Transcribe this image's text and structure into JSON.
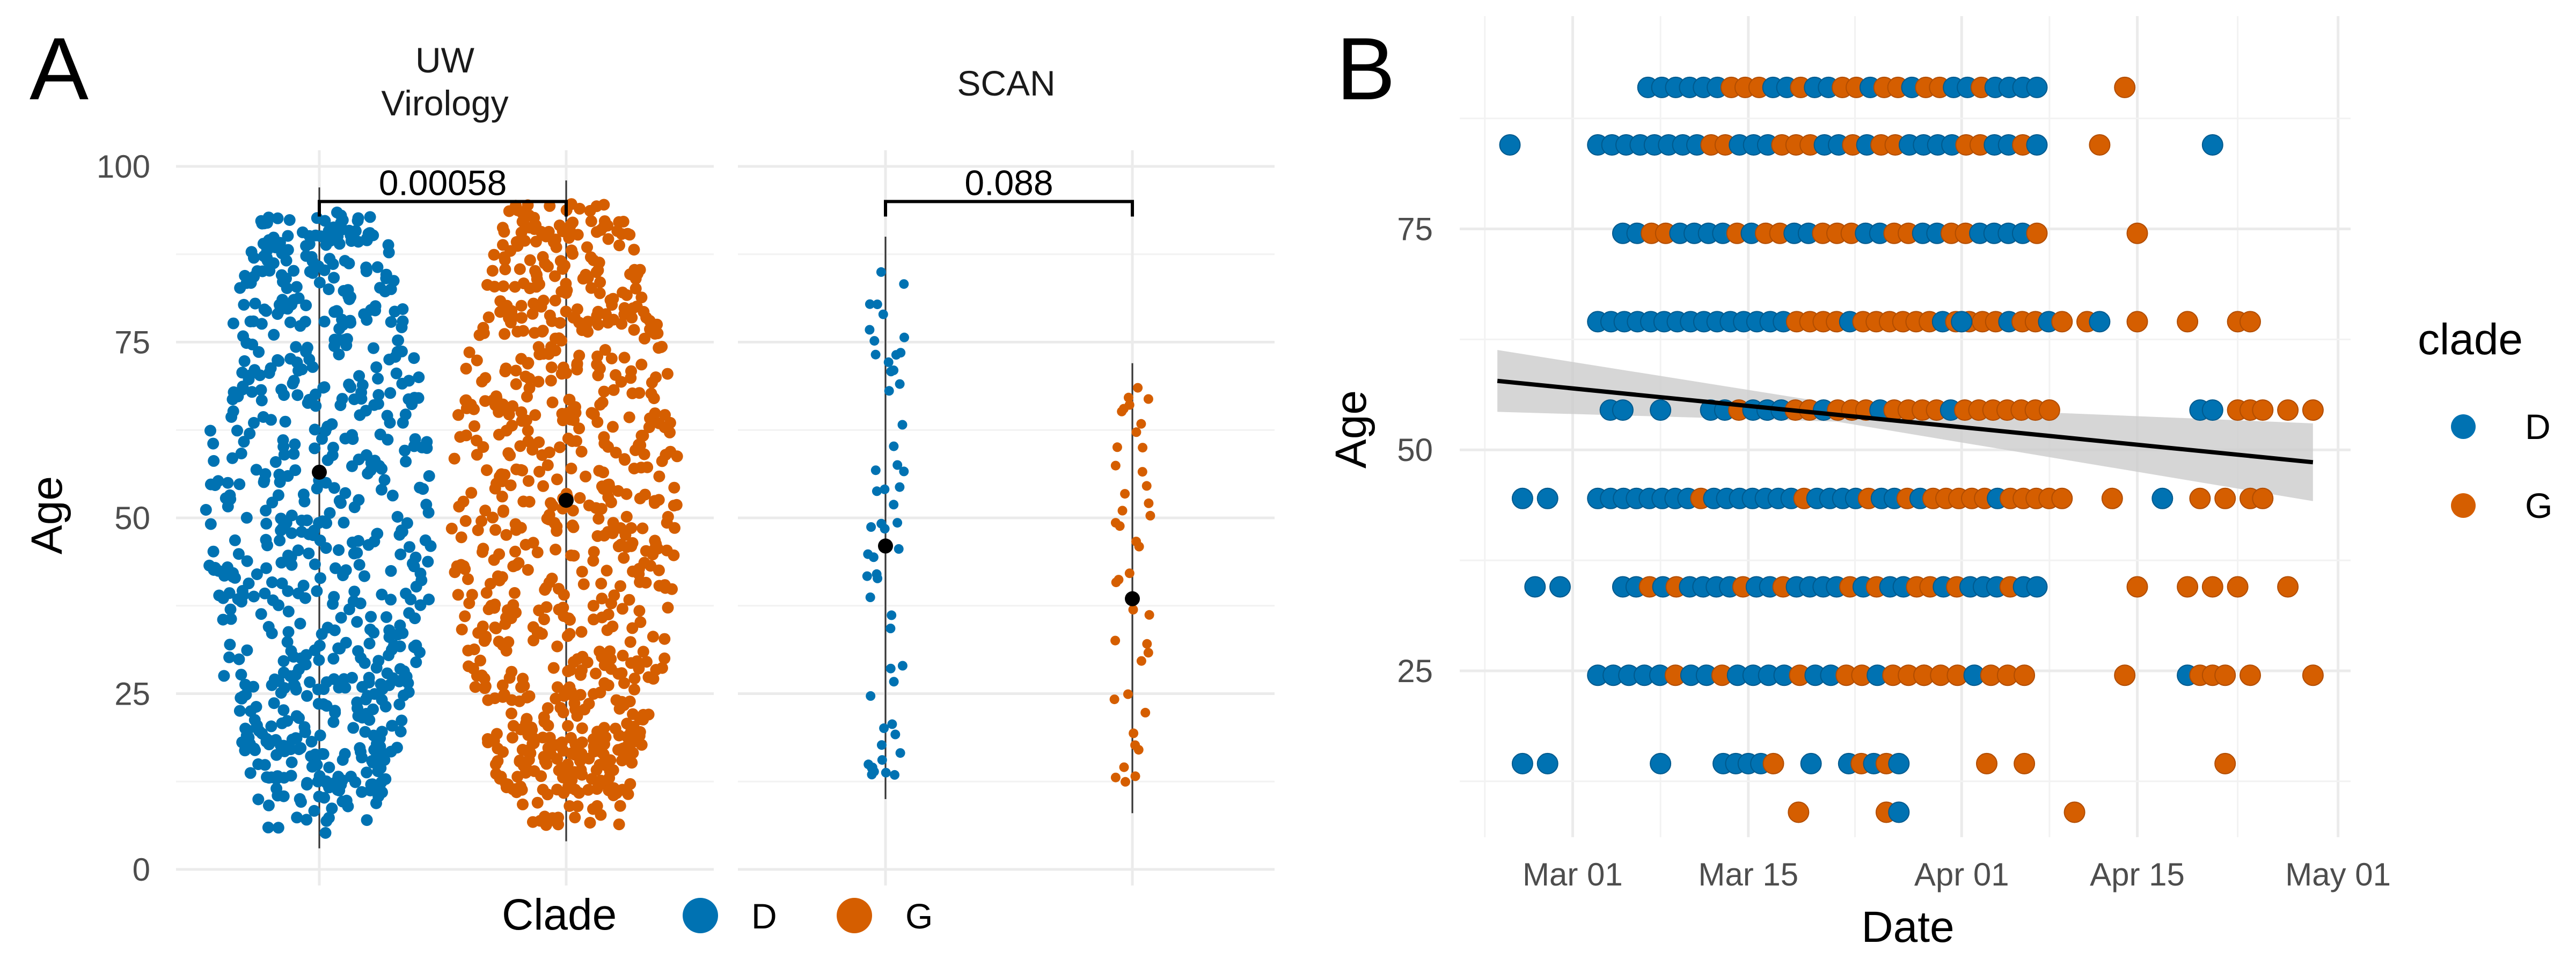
{
  "panels": {
    "a": "A",
    "b": "B"
  },
  "chart_data": [
    {
      "type": "scatter",
      "panel": "A",
      "description_type": "jittered strip plot with medians and significance brackets",
      "facets": [
        "UW\nVirology",
        "SCAN"
      ],
      "categories": [
        "D",
        "G"
      ],
      "ylabel": "Age",
      "xlabel": "",
      "ylim": [
        0,
        100
      ],
      "yticks": [
        0,
        25,
        50,
        75,
        100
      ],
      "grid": true,
      "legend": {
        "title": "Clade",
        "position": "bottom",
        "entries": [
          "D",
          "G"
        ]
      },
      "colors": {
        "D": "#0072B2",
        "G": "#D55E00",
        "median": "#000000"
      },
      "groups": [
        {
          "facet": "UW\nVirology",
          "clade": "D",
          "median": 56.5,
          "n_approx": 700,
          "range": [
            5,
            94
          ]
        },
        {
          "facet": "UW\nVirology",
          "clade": "G",
          "median": 52.5,
          "n_approx": 800,
          "range": [
            6,
            95
          ]
        },
        {
          "facet": "SCAN",
          "clade": "D",
          "median": 46,
          "n_approx": 55,
          "range": [
            12,
            87
          ]
        },
        {
          "facet": "SCAN",
          "clade": "G",
          "median": 38.5,
          "n_approx": 40,
          "range": [
            10,
            69
          ]
        }
      ],
      "comparisons": [
        {
          "facet": "UW\nVirology",
          "label": "0.00058"
        },
        {
          "facet": "SCAN",
          "label": "0.088"
        }
      ]
    },
    {
      "type": "scatter",
      "panel": "B",
      "xlabel": "Date",
      "ylabel": "Age",
      "xlim": [
        "2020-02-21",
        "2020-05-02"
      ],
      "ylim": [
        8,
        93
      ],
      "xticks": [
        {
          "date": "2020-03-01",
          "label": "Mar 01"
        },
        {
          "date": "2020-03-15",
          "label": "Mar 15"
        },
        {
          "date": "2020-04-01",
          "label": "Apr 01"
        },
        {
          "date": "2020-04-15",
          "label": "Apr 15"
        },
        {
          "date": "2020-05-01",
          "label": "May 01"
        }
      ],
      "yticks": [
        25,
        50,
        75
      ],
      "grid": true,
      "legend": {
        "title": "clade",
        "position": "right",
        "entries": [
          "D",
          "G"
        ]
      },
      "colors": {
        "D": "#0072B2",
        "G": "#D55E00",
        "ribbon": "#cccccc",
        "line": "#000000"
      },
      "age_bins": [
        14.5,
        24.5,
        34.5,
        44.5,
        54.5,
        64.5,
        74.5,
        84.5,
        91
      ],
      "trend": {
        "start": [
          "2020-02-24",
          57.8
        ],
        "end": [
          "2020-04-29",
          48.6
        ],
        "ci_start": [
          54.3,
          61.3
        ],
        "ci_end": [
          44.2,
          53
        ]
      },
      "points": [
        {
          "date": "2020-02-25",
          "age": 84.5,
          "clade": "D"
        },
        {
          "date": "2020-02-26",
          "age": 14.5,
          "clade": "D"
        },
        {
          "date": "2020-02-28",
          "age": 14.5,
          "clade": "D"
        },
        {
          "date": "2020-03-08",
          "age": 14.5,
          "clade": "D"
        },
        {
          "date": "2020-03-13",
          "age": 14.5,
          "clade": "D"
        },
        {
          "date": "2020-03-14",
          "age": 14.5,
          "clade": "D"
        },
        {
          "date": "2020-03-15",
          "age": 14.5,
          "clade": "D"
        },
        {
          "date": "2020-03-16",
          "age": 14.5,
          "clade": "D"
        },
        {
          "date": "2020-03-17",
          "age": 14.5,
          "clade": "G"
        },
        {
          "date": "2020-03-20",
          "age": 14.5,
          "clade": "D"
        },
        {
          "date": "2020-03-23",
          "age": 14.5,
          "clade": "D"
        },
        {
          "date": "2020-03-24",
          "age": 14.5,
          "clade": "G"
        },
        {
          "date": "2020-03-25",
          "age": 14.5,
          "clade": "D"
        },
        {
          "date": "2020-03-26",
          "age": 14.5,
          "clade": "G"
        },
        {
          "date": "2020-03-27",
          "age": 14.5,
          "clade": "D"
        },
        {
          "date": "2020-04-03",
          "age": 14.5,
          "clade": "G"
        },
        {
          "date": "2020-04-06",
          "age": 14.5,
          "clade": "G"
        },
        {
          "date": "2020-04-22",
          "age": 14.5,
          "clade": "G"
        },
        {
          "date": "2020-03-19",
          "age": 9,
          "clade": "G"
        },
        {
          "date": "2020-03-26",
          "age": 9,
          "clade": "G"
        },
        {
          "date": "2020-03-27",
          "age": 9,
          "clade": "D"
        },
        {
          "date": "2020-04-10",
          "age": 9,
          "clade": "G"
        },
        {
          "date": "2020-04-14",
          "age": 24.5,
          "clade": "G"
        },
        {
          "date": "2020-04-19",
          "age": 24.5,
          "clade": "D"
        },
        {
          "date": "2020-04-20",
          "age": 24.5,
          "clade": "G"
        },
        {
          "date": "2020-04-21",
          "age": 24.5,
          "clade": "G"
        },
        {
          "date": "2020-04-22",
          "age": 24.5,
          "clade": "G"
        },
        {
          "date": "2020-04-24",
          "age": 24.5,
          "clade": "G"
        },
        {
          "date": "2020-04-29",
          "age": 24.5,
          "clade": "G"
        },
        {
          "date": "2020-04-15",
          "age": 34.5,
          "clade": "G"
        },
        {
          "date": "2020-04-19",
          "age": 34.5,
          "clade": "G"
        },
        {
          "date": "2020-04-21",
          "age": 34.5,
          "clade": "G"
        },
        {
          "date": "2020-04-23",
          "age": 34.5,
          "clade": "G"
        },
        {
          "date": "2020-04-27",
          "age": 34.5,
          "clade": "G"
        },
        {
          "date": "2020-02-27",
          "age": 34.5,
          "clade": "D"
        },
        {
          "date": "2020-02-29",
          "age": 34.5,
          "clade": "D"
        },
        {
          "date": "2020-02-26",
          "age": 44.5,
          "clade": "D"
        },
        {
          "date": "2020-02-28",
          "age": 44.5,
          "clade": "D"
        },
        {
          "date": "2020-04-13",
          "age": 44.5,
          "clade": "G"
        },
        {
          "date": "2020-04-17",
          "age": 44.5,
          "clade": "D"
        },
        {
          "date": "2020-04-20",
          "age": 44.5,
          "clade": "G"
        },
        {
          "date": "2020-04-22",
          "age": 44.5,
          "clade": "G"
        },
        {
          "date": "2020-04-24",
          "age": 44.5,
          "clade": "G"
        },
        {
          "date": "2020-04-25",
          "age": 44.5,
          "clade": "G"
        },
        {
          "date": "2020-03-04",
          "age": 54.5,
          "clade": "D"
        },
        {
          "date": "2020-03-05",
          "age": 54.5,
          "clade": "D"
        },
        {
          "date": "2020-03-08",
          "age": 54.5,
          "clade": "D"
        },
        {
          "date": "2020-04-20",
          "age": 54.5,
          "clade": "D"
        },
        {
          "date": "2020-04-21",
          "age": 54.5,
          "clade": "D"
        },
        {
          "date": "2020-04-23",
          "age": 54.5,
          "clade": "G"
        },
        {
          "date": "2020-04-24",
          "age": 54.5,
          "clade": "G"
        },
        {
          "date": "2020-04-25",
          "age": 54.5,
          "clade": "G"
        },
        {
          "date": "2020-04-27",
          "age": 54.5,
          "clade": "G"
        },
        {
          "date": "2020-04-29",
          "age": 54.5,
          "clade": "G"
        },
        {
          "date": "2020-04-01",
          "age": 64.5,
          "clade": "D"
        },
        {
          "date": "2020-04-11",
          "age": 64.5,
          "clade": "G"
        },
        {
          "date": "2020-04-12",
          "age": 64.5,
          "clade": "D"
        },
        {
          "date": "2020-04-15",
          "age": 64.5,
          "clade": "G"
        },
        {
          "date": "2020-04-19",
          "age": 64.5,
          "clade": "G"
        },
        {
          "date": "2020-04-23",
          "age": 64.5,
          "clade": "G"
        },
        {
          "date": "2020-04-24",
          "age": 64.5,
          "clade": "G"
        },
        {
          "date": "2020-04-15",
          "age": 74.5,
          "clade": "G"
        },
        {
          "date": "2020-04-12",
          "age": 84.5,
          "clade": "G"
        },
        {
          "date": "2020-04-21",
          "age": 84.5,
          "clade": "D"
        },
        {
          "date": "2020-04-14",
          "age": 91,
          "clade": "G"
        }
      ],
      "dense_runs": [
        {
          "age": 24.5,
          "from": "2020-03-03",
          "to": "2020-03-29",
          "pattern": "DDDDDGDDGDDDDGDDGGDGGG"
        },
        {
          "age": 24.5,
          "from": "2020-03-29",
          "to": "2020-04-06",
          "pattern": "GGGDGGG"
        },
        {
          "age": 34.5,
          "from": "2020-03-05",
          "to": "2020-04-07",
          "pattern": "DDGDGDDDDGDDGDDDDGDGDDGGDGDDDGDD"
        },
        {
          "age": 44.5,
          "from": "2020-03-03",
          "to": "2020-04-09",
          "pattern": "DDDDDDDDGDDDDDDDGDDDDGDDGDGGGGGDGGGGG"
        },
        {
          "age": 54.5,
          "from": "2020-03-12",
          "to": "2020-04-08",
          "pattern": "DDGDDDGGDGGGDGGGGDGGGGGGG"
        },
        {
          "age": 64.5,
          "from": "2020-03-03",
          "to": "2020-04-09",
          "pattern": "DDDDDDDDDDDDDDDGGGGDGGGGGGDGGGGDGGDG"
        },
        {
          "age": 74.5,
          "from": "2020-03-05",
          "to": "2020-04-07",
          "pattern": "DDGGDDDDGDGGDDGGGDDGGDDGGDDDDG"
        },
        {
          "age": 84.5,
          "from": "2020-03-03",
          "to": "2020-04-07",
          "pattern": "DDDDDDDDGGDDDGGGDDGDGGDDDDGGDDGD"
        },
        {
          "age": 91,
          "from": "2020-03-07",
          "to": "2020-04-07",
          "pattern": "DDDDDDGGGDDGDDGGDGGDGGDDGDDDD"
        }
      ]
    }
  ]
}
